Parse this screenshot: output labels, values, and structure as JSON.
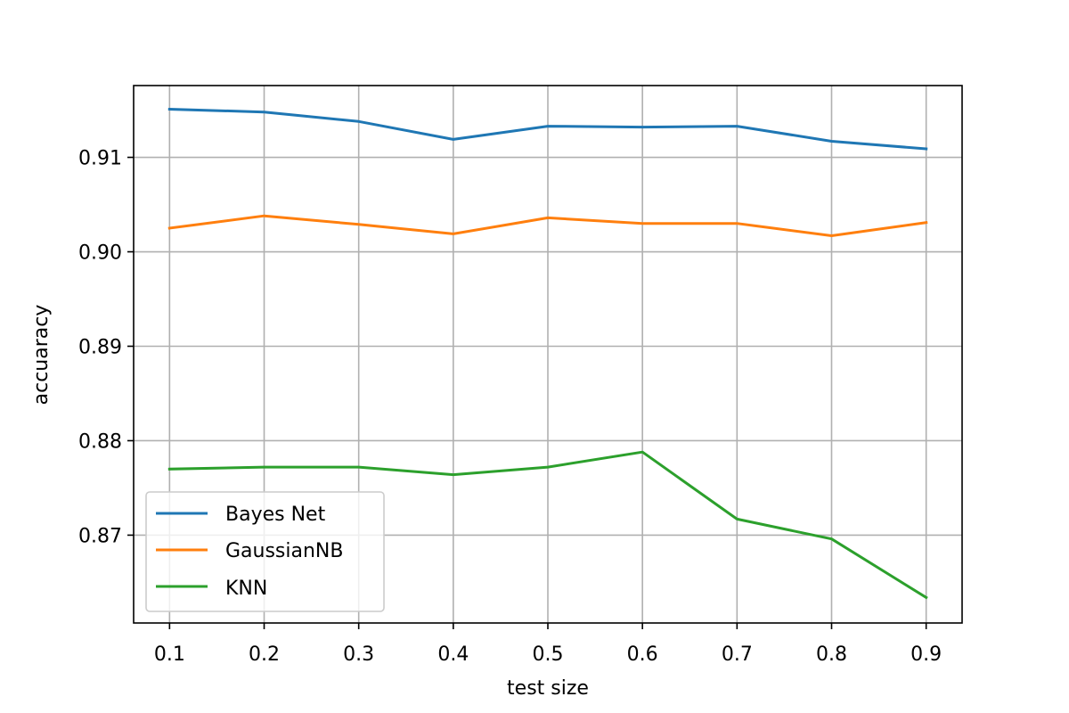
{
  "chart_data": {
    "type": "line",
    "title": "",
    "xlabel": "test size",
    "ylabel": "accuaracy",
    "x": [
      0.1,
      0.2,
      0.3,
      0.4,
      0.5,
      0.6,
      0.7,
      0.8,
      0.9
    ],
    "xticks": [
      "0.1",
      "0.2",
      "0.3",
      "0.4",
      "0.5",
      "0.6",
      "0.7",
      "0.8",
      "0.9"
    ],
    "xlim": [
      0.062,
      0.938
    ],
    "yticks": [
      "0.87",
      "0.88",
      "0.89",
      "0.90",
      "0.91"
    ],
    "ytick_values": [
      0.87,
      0.88,
      0.89,
      0.9,
      0.91
    ],
    "ylim": [
      0.8607,
      0.9176
    ],
    "grid": true,
    "legend_position": "lower-left",
    "series": [
      {
        "name": "Bayes Net",
        "color": "#1f77b4",
        "values": [
          0.9151,
          0.9148,
          0.9138,
          0.9119,
          0.9133,
          0.9132,
          0.9133,
          0.9117,
          0.9109
        ]
      },
      {
        "name": "GaussianNB",
        "color": "#ff7f0e",
        "values": [
          0.9025,
          0.9038,
          0.9029,
          0.9019,
          0.9036,
          0.903,
          0.903,
          0.9017,
          0.9031
        ]
      },
      {
        "name": "KNN",
        "color": "#2ca02c",
        "values": [
          0.877,
          0.8772,
          0.8772,
          0.8764,
          0.8772,
          0.8788,
          0.8717,
          0.8696,
          0.8634
        ]
      }
    ]
  }
}
